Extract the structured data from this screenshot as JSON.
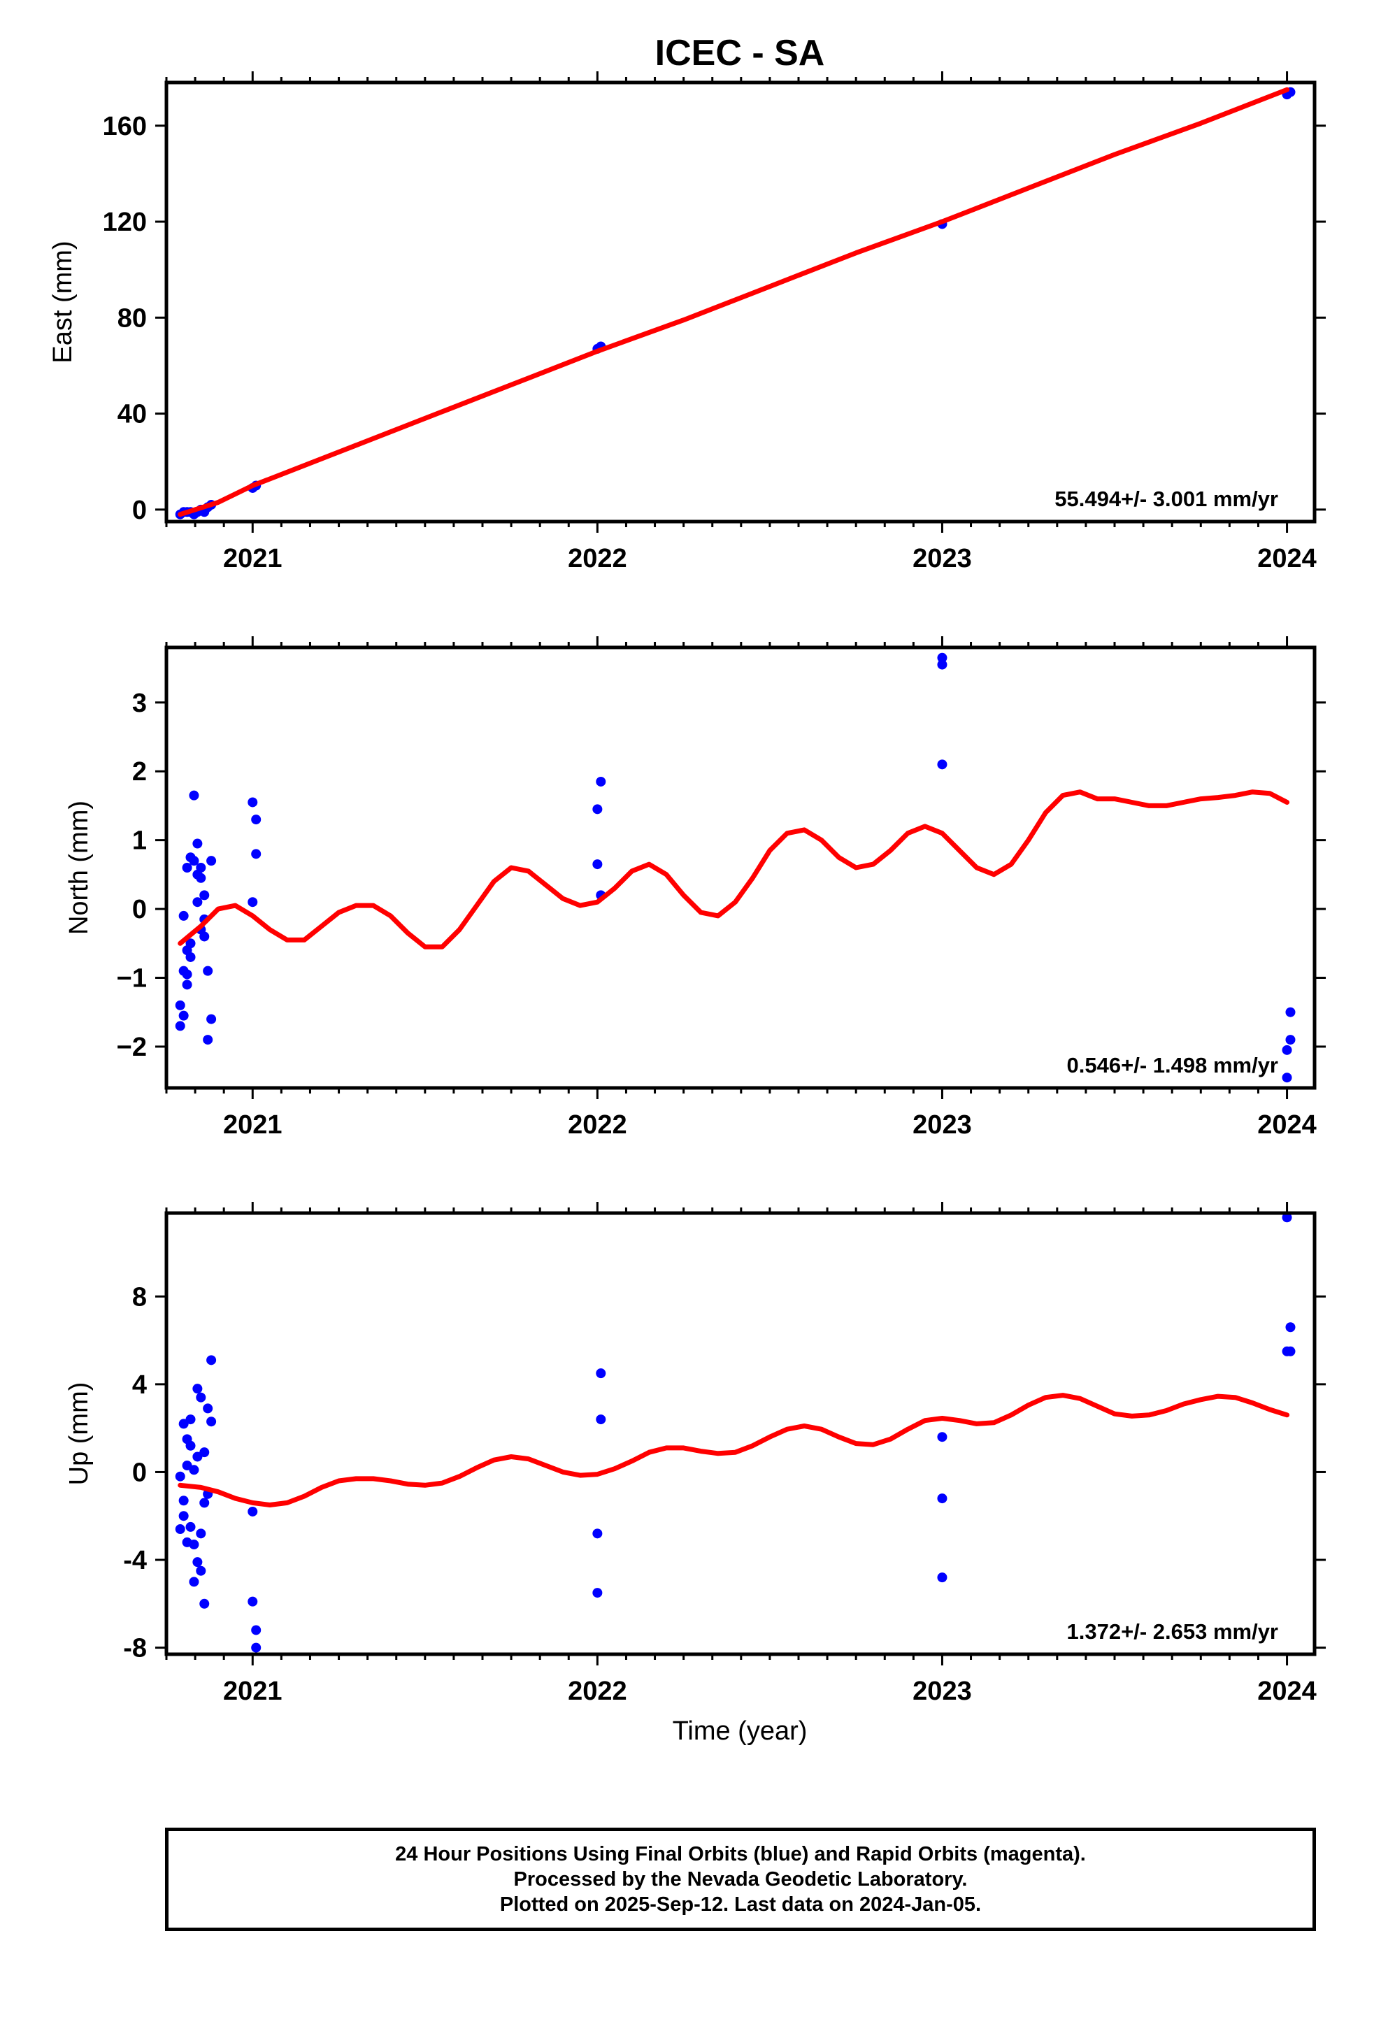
{
  "title": "ICEC - SA",
  "x_label": "Time (year)",
  "footer_lines": [
    "24 Hour Positions Using Final Orbits (blue) and Rapid Orbits (magenta).",
    "Processed by the Nevada Geodetic Laboratory.",
    "Plotted on 2025-Sep-12. Last data on 2024-Jan-05."
  ],
  "colors": {
    "points": "#0000ff",
    "model": "#ff0000",
    "axes": "#000000"
  },
  "chart_data": [
    {
      "type": "scatter",
      "name": "east",
      "ylabel": "East (mm)",
      "xlim": [
        2020.75,
        2024.08
      ],
      "ylim": [
        -5,
        178
      ],
      "x_ticks": [
        "2021",
        "2022",
        "2023",
        "2024"
      ],
      "y_ticks": [
        "0",
        "40",
        "80",
        "120",
        "160"
      ],
      "rate_label": "55.494+/- 3.001 mm/yr",
      "points": {
        "x": [
          2020.79,
          2020.8,
          2020.81,
          2020.82,
          2020.83,
          2020.84,
          2020.85,
          2020.86,
          2020.87,
          2020.88,
          2021.0,
          2021.01,
          2022.0,
          2022.01,
          2023.0,
          2024.0,
          2024.01
        ],
        "y": [
          -2,
          -1,
          -1,
          -1,
          -2,
          -1,
          0,
          -1,
          1,
          2,
          9,
          10,
          67,
          68,
          119,
          173,
          174
        ]
      },
      "model": {
        "x": [
          2020.79,
          2020.9,
          2021.0,
          2021.25,
          2021.5,
          2021.75,
          2022.0,
          2022.25,
          2022.5,
          2022.75,
          2023.0,
          2023.25,
          2023.5,
          2023.75,
          2024.0
        ],
        "y": [
          -2,
          3,
          10,
          24,
          38,
          52,
          66,
          79,
          93,
          107,
          120,
          134,
          148,
          161,
          175
        ]
      }
    },
    {
      "type": "scatter",
      "name": "north",
      "ylabel": "North (mm)",
      "xlim": [
        2020.75,
        2024.08
      ],
      "ylim": [
        -2.6,
        3.8
      ],
      "x_ticks": [
        "2021",
        "2022",
        "2023",
        "2024"
      ],
      "y_ticks": [
        "−2",
        "−1",
        "0",
        "1",
        "2",
        "3"
      ],
      "rate_label": "0.546+/- 1.498 mm/yr",
      "points": {
        "x": [
          2020.79,
          2020.79,
          2020.8,
          2020.8,
          2020.8,
          2020.81,
          2020.81,
          2020.81,
          2020.81,
          2020.82,
          2020.82,
          2020.82,
          2020.83,
          2020.83,
          2020.84,
          2020.84,
          2020.84,
          2020.85,
          2020.85,
          2020.85,
          2020.86,
          2020.86,
          2020.86,
          2020.87,
          2020.87,
          2020.88,
          2020.88,
          2021.0,
          2021.0,
          2021.01,
          2021.01,
          2022.0,
          2022.0,
          2022.01,
          2022.01,
          2023.0,
          2023.0,
          2023.0,
          2024.0,
          2024.0,
          2024.01,
          2024.01
        ],
        "y": [
          -1.7,
          -1.4,
          -1.55,
          -0.9,
          -0.1,
          0.6,
          -0.6,
          -1.1,
          -0.95,
          0.75,
          -0.7,
          -0.5,
          1.65,
          0.7,
          0.95,
          0.5,
          0.1,
          0.6,
          -0.3,
          0.45,
          -0.15,
          -0.4,
          0.2,
          -0.9,
          -1.9,
          -1.6,
          0.7,
          1.55,
          0.1,
          1.3,
          0.8,
          1.45,
          0.65,
          1.85,
          0.2,
          3.65,
          3.55,
          2.1,
          -2.05,
          -2.45,
          -1.5,
          -1.9
        ]
      },
      "model": {
        "x": [
          2020.79,
          2020.85,
          2020.9,
          2020.95,
          2021.0,
          2021.05,
          2021.1,
          2021.15,
          2021.2,
          2021.25,
          2021.3,
          2021.35,
          2021.4,
          2021.45,
          2021.5,
          2021.55,
          2021.6,
          2021.65,
          2021.7,
          2021.75,
          2021.8,
          2021.85,
          2021.9,
          2021.95,
          2022.0,
          2022.05,
          2022.1,
          2022.15,
          2022.2,
          2022.25,
          2022.3,
          2022.35,
          2022.4,
          2022.45,
          2022.5,
          2022.55,
          2022.6,
          2022.65,
          2022.7,
          2022.75,
          2022.8,
          2022.85,
          2022.9,
          2022.95,
          2023.0,
          2023.05,
          2023.1,
          2023.15,
          2023.2,
          2023.25,
          2023.3,
          2023.35,
          2023.4,
          2023.45,
          2023.5,
          2023.55,
          2023.6,
          2023.65,
          2023.7,
          2023.75,
          2023.8,
          2023.85,
          2023.9,
          2023.95,
          2024.0
        ],
        "y": [
          -0.5,
          -0.25,
          0.0,
          0.05,
          -0.1,
          -0.3,
          -0.45,
          -0.45,
          -0.25,
          -0.05,
          0.05,
          0.05,
          -0.1,
          -0.35,
          -0.55,
          -0.55,
          -0.3,
          0.05,
          0.4,
          0.6,
          0.55,
          0.35,
          0.15,
          0.05,
          0.1,
          0.3,
          0.55,
          0.65,
          0.5,
          0.2,
          -0.05,
          -0.1,
          0.1,
          0.45,
          0.85,
          1.1,
          1.15,
          1.0,
          0.75,
          0.6,
          0.65,
          0.85,
          1.1,
          1.2,
          1.1,
          0.85,
          0.6,
          0.5,
          0.65,
          1.0,
          1.4,
          1.65,
          1.7,
          1.6,
          1.6,
          1.55,
          1.5,
          1.5,
          1.55,
          1.6,
          1.62,
          1.65,
          1.7,
          1.68,
          1.55
        ]
      }
    },
    {
      "type": "scatter",
      "name": "up",
      "ylabel": "Up (mm)",
      "xlim": [
        2020.75,
        2024.08
      ],
      "ylim": [
        -8.3,
        11.8
      ],
      "x_ticks": [
        "2021",
        "2022",
        "2023",
        "2024"
      ],
      "y_ticks": [
        "-8",
        "-4",
        "0",
        "4",
        "8"
      ],
      "rate_label": "1.372+/- 2.653 mm/yr",
      "points": {
        "x": [
          2020.79,
          2020.79,
          2020.8,
          2020.8,
          2020.8,
          2020.81,
          2020.81,
          2020.81,
          2020.82,
          2020.82,
          2020.82,
          2020.83,
          2020.83,
          2020.83,
          2020.84,
          2020.84,
          2020.84,
          2020.85,
          2020.85,
          2020.85,
          2020.86,
          2020.86,
          2020.86,
          2020.87,
          2020.87,
          2020.88,
          2020.88,
          2021.0,
          2021.0,
          2021.01,
          2021.01,
          2022.0,
          2022.0,
          2022.01,
          2022.01,
          2023.0,
          2023.0,
          2023.0,
          2024.0,
          2024.0,
          2024.01,
          2024.01
        ],
        "y": [
          -0.2,
          -2.6,
          -1.3,
          2.2,
          -2.0,
          1.5,
          0.3,
          -3.2,
          2.4,
          -2.5,
          1.2,
          0.1,
          -5.0,
          -3.3,
          3.8,
          0.7,
          -4.1,
          3.4,
          -2.8,
          -4.5,
          0.9,
          -6.0,
          -1.4,
          2.9,
          -1.0,
          5.1,
          2.3,
          -1.8,
          -5.9,
          -7.2,
          -8.0,
          -2.8,
          -5.5,
          4.5,
          2.4,
          1.6,
          -1.2,
          -4.8,
          5.5,
          11.6,
          6.6,
          5.5
        ]
      },
      "model": {
        "x": [
          2020.79,
          2020.85,
          2020.9,
          2020.95,
          2021.0,
          2021.05,
          2021.1,
          2021.15,
          2021.2,
          2021.25,
          2021.3,
          2021.35,
          2021.4,
          2021.45,
          2021.5,
          2021.55,
          2021.6,
          2021.65,
          2021.7,
          2021.75,
          2021.8,
          2021.85,
          2021.9,
          2021.95,
          2022.0,
          2022.05,
          2022.1,
          2022.15,
          2022.2,
          2022.25,
          2022.3,
          2022.35,
          2022.4,
          2022.45,
          2022.5,
          2022.55,
          2022.6,
          2022.65,
          2022.7,
          2022.75,
          2022.8,
          2022.85,
          2022.9,
          2022.95,
          2023.0,
          2023.05,
          2023.1,
          2023.15,
          2023.2,
          2023.25,
          2023.3,
          2023.35,
          2023.4,
          2023.45,
          2023.5,
          2023.55,
          2023.6,
          2023.65,
          2023.7,
          2023.75,
          2023.8,
          2023.85,
          2023.9,
          2023.95,
          2024.0
        ],
        "y": [
          -0.6,
          -0.7,
          -0.9,
          -1.2,
          -1.4,
          -1.5,
          -1.4,
          -1.1,
          -0.7,
          -0.4,
          -0.3,
          -0.3,
          -0.4,
          -0.55,
          -0.6,
          -0.5,
          -0.2,
          0.2,
          0.55,
          0.7,
          0.6,
          0.3,
          0.0,
          -0.15,
          -0.1,
          0.15,
          0.5,
          0.9,
          1.1,
          1.1,
          0.95,
          0.85,
          0.9,
          1.2,
          1.6,
          1.95,
          2.1,
          1.95,
          1.6,
          1.3,
          1.25,
          1.5,
          1.95,
          2.35,
          2.45,
          2.35,
          2.2,
          2.25,
          2.6,
          3.05,
          3.4,
          3.5,
          3.35,
          3.0,
          2.65,
          2.55,
          2.6,
          2.8,
          3.1,
          3.3,
          3.45,
          3.4,
          3.15,
          2.85,
          2.6
        ]
      }
    }
  ]
}
